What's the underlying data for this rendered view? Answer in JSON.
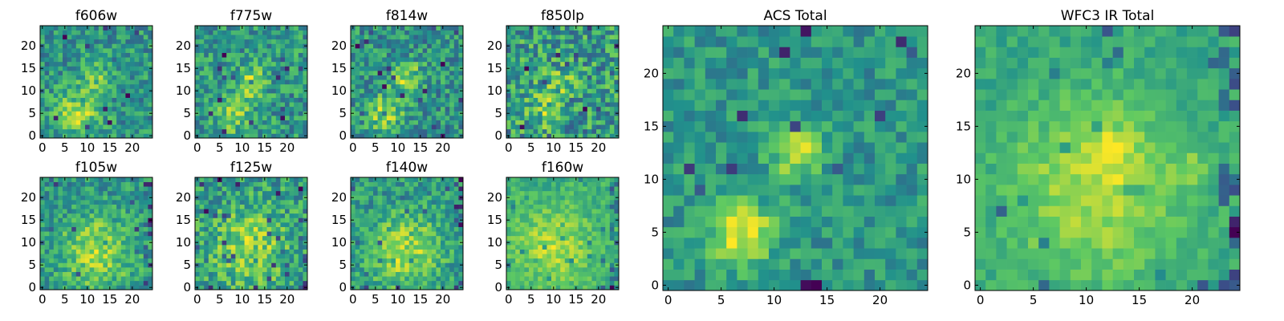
{
  "figure": {
    "colormap": "viridis",
    "colors": [
      "#440154",
      "#3b528b",
      "#21918c",
      "#5ec962",
      "#fde725"
    ]
  },
  "chart_data": [
    {
      "type": "heatmap",
      "title": "f606w",
      "grid": [
        25,
        25
      ],
      "xticks": [
        "0",
        "5",
        "10",
        "15",
        "20"
      ],
      "yticks": [
        "0",
        "5",
        "10",
        "15",
        "20"
      ],
      "xlim": [
        0,
        24
      ],
      "ylim": [
        0,
        24
      ],
      "seed": 11,
      "sources": [
        {
          "x": 8,
          "y": 5,
          "amp": 0.45,
          "sigma": 3.5
        },
        {
          "x": 12,
          "y": 13,
          "amp": 0.3,
          "sigma": 2.5
        }
      ],
      "base": 0.45,
      "noise": 0.55,
      "edge": 0.0
    },
    {
      "type": "heatmap",
      "title": "f775w",
      "grid": [
        25,
        25
      ],
      "xticks": [
        "0",
        "5",
        "10",
        "15",
        "20"
      ],
      "yticks": [
        "0",
        "5",
        "10",
        "15",
        "20"
      ],
      "xlim": [
        0,
        24
      ],
      "ylim": [
        0,
        24
      ],
      "seed": 23,
      "sources": [
        {
          "x": 8,
          "y": 5,
          "amp": 0.35,
          "sigma": 3.0
        },
        {
          "x": 12,
          "y": 12,
          "amp": 0.35,
          "sigma": 2.5
        }
      ],
      "base": 0.45,
      "noise": 0.55,
      "edge": 0.0
    },
    {
      "type": "heatmap",
      "title": "f814w",
      "grid": [
        25,
        25
      ],
      "xticks": [
        "0",
        "5",
        "10",
        "15",
        "20"
      ],
      "yticks": [
        "0",
        "5",
        "10",
        "15",
        "20"
      ],
      "xlim": [
        0,
        24
      ],
      "ylim": [
        0,
        24
      ],
      "seed": 37,
      "sources": [
        {
          "x": 7,
          "y": 5,
          "amp": 0.4,
          "sigma": 3.0
        },
        {
          "x": 12,
          "y": 13,
          "amp": 0.4,
          "sigma": 2.5
        }
      ],
      "base": 0.45,
      "noise": 0.55,
      "edge": 0.0
    },
    {
      "type": "heatmap",
      "title": "f850lp",
      "grid": [
        25,
        25
      ],
      "xticks": [
        "0",
        "5",
        "10",
        "15",
        "20"
      ],
      "yticks": [
        "0",
        "5",
        "10",
        "15",
        "20"
      ],
      "xlim": [
        0,
        24
      ],
      "ylim": [
        0,
        24
      ],
      "seed": 41,
      "sources": [
        {
          "x": 8,
          "y": 6,
          "amp": 0.25,
          "sigma": 3.0
        },
        {
          "x": 12,
          "y": 12,
          "amp": 0.2,
          "sigma": 2.5
        }
      ],
      "base": 0.45,
      "noise": 0.65,
      "edge": 0.0
    },
    {
      "type": "heatmap",
      "title": "f105w",
      "grid": [
        25,
        25
      ],
      "xticks": [
        "0",
        "5",
        "10",
        "15",
        "20"
      ],
      "yticks": [
        "0",
        "5",
        "10",
        "15",
        "20"
      ],
      "xlim": [
        0,
        24
      ],
      "ylim": [
        0,
        24
      ],
      "seed": 53,
      "sources": [
        {
          "x": 12,
          "y": 8,
          "amp": 0.45,
          "sigma": 6.0
        }
      ],
      "base": 0.5,
      "noise": 0.5,
      "edge": 0.25
    },
    {
      "type": "heatmap",
      "title": "f125w",
      "grid": [
        25,
        25
      ],
      "xticks": [
        "0",
        "5",
        "10",
        "15",
        "20"
      ],
      "yticks": [
        "0",
        "5",
        "10",
        "15",
        "20"
      ],
      "xlim": [
        0,
        24
      ],
      "ylim": [
        0,
        24
      ],
      "seed": 67,
      "sources": [
        {
          "x": 12,
          "y": 9,
          "amp": 0.35,
          "sigma": 6.0
        }
      ],
      "base": 0.5,
      "noise": 0.6,
      "edge": 0.2
    },
    {
      "type": "heatmap",
      "title": "f140w",
      "grid": [
        25,
        25
      ],
      "xticks": [
        "0",
        "5",
        "10",
        "15",
        "20"
      ],
      "yticks": [
        "0",
        "5",
        "10",
        "15",
        "20"
      ],
      "xlim": [
        0,
        24
      ],
      "ylim": [
        0,
        24
      ],
      "seed": 79,
      "sources": [
        {
          "x": 12,
          "y": 8,
          "amp": 0.45,
          "sigma": 6.0
        }
      ],
      "base": 0.5,
      "noise": 0.5,
      "edge": 0.2
    },
    {
      "type": "heatmap",
      "title": "f160w",
      "grid": [
        25,
        25
      ],
      "xticks": [
        "0",
        "5",
        "10",
        "15",
        "20"
      ],
      "yticks": [
        "0",
        "5",
        "10",
        "15",
        "20"
      ],
      "xlim": [
        0,
        24
      ],
      "ylim": [
        0,
        24
      ],
      "seed": 83,
      "sources": [
        {
          "x": 10,
          "y": 9,
          "amp": 0.45,
          "sigma": 6.0
        }
      ],
      "base": 0.55,
      "noise": 0.45,
      "edge": 0.3
    },
    {
      "type": "heatmap",
      "title": "ACS Total",
      "grid": [
        25,
        25
      ],
      "xticks": [
        "0",
        "5",
        "10",
        "15",
        "20"
      ],
      "yticks": [
        "0",
        "5",
        "10",
        "15",
        "20"
      ],
      "xlim": [
        0,
        24
      ],
      "ylim": [
        0,
        24
      ],
      "seed": 97,
      "sources": [
        {
          "x": 7,
          "y": 5,
          "amp": 0.5,
          "sigma": 2.2
        },
        {
          "x": 12,
          "y": 12.5,
          "amp": 0.5,
          "sigma": 1.6
        }
      ],
      "base": 0.45,
      "noise": 0.35,
      "edge": 0.0
    },
    {
      "type": "heatmap",
      "title": "WFC3 IR Total",
      "grid": [
        25,
        25
      ],
      "xticks": [
        "0",
        "5",
        "10",
        "15",
        "20"
      ],
      "yticks": [
        "0",
        "5",
        "10",
        "15",
        "20"
      ],
      "xlim": [
        0,
        24
      ],
      "ylim": [
        0,
        24
      ],
      "seed": 101,
      "sources": [
        {
          "x": 11,
          "y": 9,
          "amp": 0.45,
          "sigma": 6.0
        },
        {
          "x": 12,
          "y": 13,
          "amp": 0.2,
          "sigma": 2.0
        },
        {
          "x": 20,
          "y": 11,
          "amp": 0.2,
          "sigma": 1.2
        }
      ],
      "base": 0.55,
      "noise": 0.3,
      "edge": 0.45
    }
  ]
}
